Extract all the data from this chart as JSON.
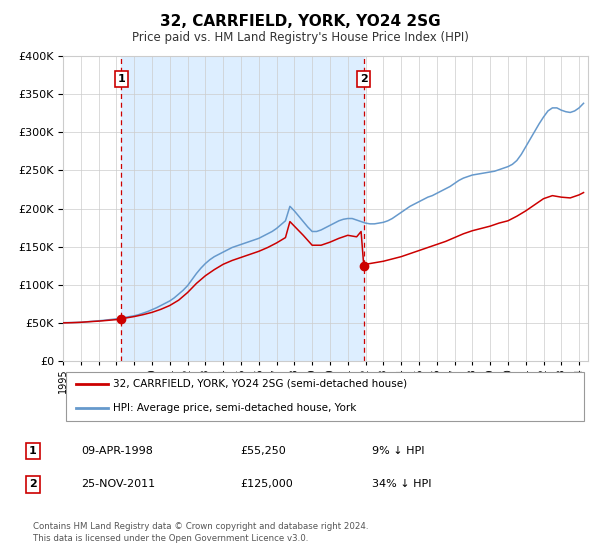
{
  "title": "32, CARRFIELD, YORK, YO24 2SG",
  "subtitle": "Price paid vs. HM Land Registry's House Price Index (HPI)",
  "legend_line1": "32, CARRFIELD, YORK, YO24 2SG (semi-detached house)",
  "legend_line2": "HPI: Average price, semi-detached house, York",
  "annotation1_date": "09-APR-1998",
  "annotation1_price": "£55,250",
  "annotation1_hpi": "9% ↓ HPI",
  "annotation1_year": 1998.27,
  "annotation1_value": 55250,
  "annotation2_date": "25-NOV-2011",
  "annotation2_price": "£125,000",
  "annotation2_hpi": "34% ↓ HPI",
  "annotation2_year": 2011.9,
  "annotation2_value": 125000,
  "property_color": "#cc0000",
  "hpi_color": "#6699cc",
  "vline_color": "#cc0000",
  "shading_color": "#ddeeff",
  "ylim": [
    0,
    400000
  ],
  "xlim_start": 1995.0,
  "xlim_end": 2024.5,
  "footnote_line1": "Contains HM Land Registry data © Crown copyright and database right 2024.",
  "footnote_line2": "This data is licensed under the Open Government Licence v3.0.",
  "hpi_data": [
    [
      1995.0,
      50500
    ],
    [
      1995.25,
      50600
    ],
    [
      1995.5,
      50700
    ],
    [
      1995.75,
      50800
    ],
    [
      1996.0,
      51000
    ],
    [
      1996.25,
      51500
    ],
    [
      1996.5,
      52000
    ],
    [
      1996.75,
      52500
    ],
    [
      1997.0,
      53000
    ],
    [
      1997.25,
      53500
    ],
    [
      1997.5,
      54200
    ],
    [
      1997.75,
      54800
    ],
    [
      1998.0,
      55500
    ],
    [
      1998.25,
      56500
    ],
    [
      1998.5,
      57500
    ],
    [
      1998.75,
      58500
    ],
    [
      1999.0,
      59500
    ],
    [
      1999.25,
      61000
    ],
    [
      1999.5,
      63000
    ],
    [
      1999.75,
      65000
    ],
    [
      2000.0,
      67500
    ],
    [
      2000.25,
      70000
    ],
    [
      2000.5,
      73000
    ],
    [
      2000.75,
      76000
    ],
    [
      2001.0,
      79000
    ],
    [
      2001.25,
      83000
    ],
    [
      2001.5,
      88000
    ],
    [
      2001.75,
      93000
    ],
    [
      2002.0,
      99000
    ],
    [
      2002.25,
      107000
    ],
    [
      2002.5,
      115000
    ],
    [
      2002.75,
      122000
    ],
    [
      2003.0,
      128000
    ],
    [
      2003.25,
      133000
    ],
    [
      2003.5,
      137000
    ],
    [
      2003.75,
      140000
    ],
    [
      2004.0,
      143000
    ],
    [
      2004.25,
      146000
    ],
    [
      2004.5,
      149000
    ],
    [
      2004.75,
      151000
    ],
    [
      2005.0,
      153000
    ],
    [
      2005.25,
      155000
    ],
    [
      2005.5,
      157000
    ],
    [
      2005.75,
      159000
    ],
    [
      2006.0,
      161000
    ],
    [
      2006.25,
      164000
    ],
    [
      2006.5,
      167000
    ],
    [
      2006.75,
      170000
    ],
    [
      2007.0,
      174000
    ],
    [
      2007.25,
      179000
    ],
    [
      2007.5,
      184000
    ],
    [
      2007.75,
      203000
    ],
    [
      2008.0,
      197000
    ],
    [
      2008.25,
      190000
    ],
    [
      2008.5,
      183000
    ],
    [
      2008.75,
      176000
    ],
    [
      2009.0,
      170000
    ],
    [
      2009.25,
      170000
    ],
    [
      2009.5,
      172000
    ],
    [
      2009.75,
      175000
    ],
    [
      2010.0,
      178000
    ],
    [
      2010.25,
      181000
    ],
    [
      2010.5,
      184000
    ],
    [
      2010.75,
      186000
    ],
    [
      2011.0,
      187000
    ],
    [
      2011.25,
      187000
    ],
    [
      2011.5,
      185000
    ],
    [
      2011.75,
      183000
    ],
    [
      2012.0,
      181000
    ],
    [
      2012.25,
      180000
    ],
    [
      2012.5,
      180000
    ],
    [
      2012.75,
      181000
    ],
    [
      2013.0,
      182000
    ],
    [
      2013.25,
      184000
    ],
    [
      2013.5,
      187000
    ],
    [
      2013.75,
      191000
    ],
    [
      2014.0,
      195000
    ],
    [
      2014.25,
      199000
    ],
    [
      2014.5,
      203000
    ],
    [
      2014.75,
      206000
    ],
    [
      2015.0,
      209000
    ],
    [
      2015.25,
      212000
    ],
    [
      2015.5,
      215000
    ],
    [
      2015.75,
      217000
    ],
    [
      2016.0,
      220000
    ],
    [
      2016.25,
      223000
    ],
    [
      2016.5,
      226000
    ],
    [
      2016.75,
      229000
    ],
    [
      2017.0,
      233000
    ],
    [
      2017.25,
      237000
    ],
    [
      2017.5,
      240000
    ],
    [
      2017.75,
      242000
    ],
    [
      2018.0,
      244000
    ],
    [
      2018.25,
      245000
    ],
    [
      2018.5,
      246000
    ],
    [
      2018.75,
      247000
    ],
    [
      2019.0,
      248000
    ],
    [
      2019.25,
      249000
    ],
    [
      2019.5,
      251000
    ],
    [
      2019.75,
      253000
    ],
    [
      2020.0,
      255000
    ],
    [
      2020.25,
      258000
    ],
    [
      2020.5,
      263000
    ],
    [
      2020.75,
      271000
    ],
    [
      2021.0,
      281000
    ],
    [
      2021.25,
      291000
    ],
    [
      2021.5,
      301000
    ],
    [
      2021.75,
      311000
    ],
    [
      2022.0,
      320000
    ],
    [
      2022.25,
      328000
    ],
    [
      2022.5,
      332000
    ],
    [
      2022.75,
      332000
    ],
    [
      2023.0,
      329000
    ],
    [
      2023.25,
      327000
    ],
    [
      2023.5,
      326000
    ],
    [
      2023.75,
      328000
    ],
    [
      2024.0,
      332000
    ],
    [
      2024.25,
      338000
    ]
  ],
  "property_data": [
    [
      1995.0,
      50200
    ],
    [
      1995.5,
      50500
    ],
    [
      1996.0,
      51000
    ],
    [
      1996.5,
      51800
    ],
    [
      1997.0,
      52500
    ],
    [
      1997.5,
      53500
    ],
    [
      1998.0,
      54500
    ],
    [
      1998.27,
      55250
    ],
    [
      1998.5,
      56500
    ],
    [
      1999.0,
      58500
    ],
    [
      1999.5,
      61000
    ],
    [
      2000.0,
      64000
    ],
    [
      2000.5,
      68000
    ],
    [
      2001.0,
      73000
    ],
    [
      2001.5,
      80000
    ],
    [
      2002.0,
      90000
    ],
    [
      2002.5,
      102000
    ],
    [
      2003.0,
      112000
    ],
    [
      2003.5,
      120000
    ],
    [
      2004.0,
      127000
    ],
    [
      2004.5,
      132000
    ],
    [
      2005.0,
      136000
    ],
    [
      2005.5,
      140000
    ],
    [
      2006.0,
      144000
    ],
    [
      2006.5,
      149000
    ],
    [
      2007.0,
      155000
    ],
    [
      2007.5,
      162000
    ],
    [
      2007.75,
      183000
    ],
    [
      2008.0,
      177000
    ],
    [
      2008.5,
      165000
    ],
    [
      2009.0,
      152000
    ],
    [
      2009.5,
      152000
    ],
    [
      2010.0,
      156000
    ],
    [
      2010.5,
      161000
    ],
    [
      2011.0,
      165000
    ],
    [
      2011.5,
      163000
    ],
    [
      2011.75,
      170000
    ],
    [
      2011.9,
      125000
    ],
    [
      2012.0,
      127000
    ],
    [
      2012.5,
      129000
    ],
    [
      2013.0,
      131000
    ],
    [
      2013.5,
      134000
    ],
    [
      2014.0,
      137000
    ],
    [
      2014.5,
      141000
    ],
    [
      2015.0,
      145000
    ],
    [
      2015.5,
      149000
    ],
    [
      2016.0,
      153000
    ],
    [
      2016.5,
      157000
    ],
    [
      2017.0,
      162000
    ],
    [
      2017.5,
      167000
    ],
    [
      2018.0,
      171000
    ],
    [
      2018.5,
      174000
    ],
    [
      2019.0,
      177000
    ],
    [
      2019.5,
      181000
    ],
    [
      2020.0,
      184000
    ],
    [
      2020.5,
      190000
    ],
    [
      2021.0,
      197000
    ],
    [
      2021.5,
      205000
    ],
    [
      2022.0,
      213000
    ],
    [
      2022.5,
      217000
    ],
    [
      2023.0,
      215000
    ],
    [
      2023.5,
      214000
    ],
    [
      2024.0,
      218000
    ],
    [
      2024.25,
      221000
    ]
  ]
}
